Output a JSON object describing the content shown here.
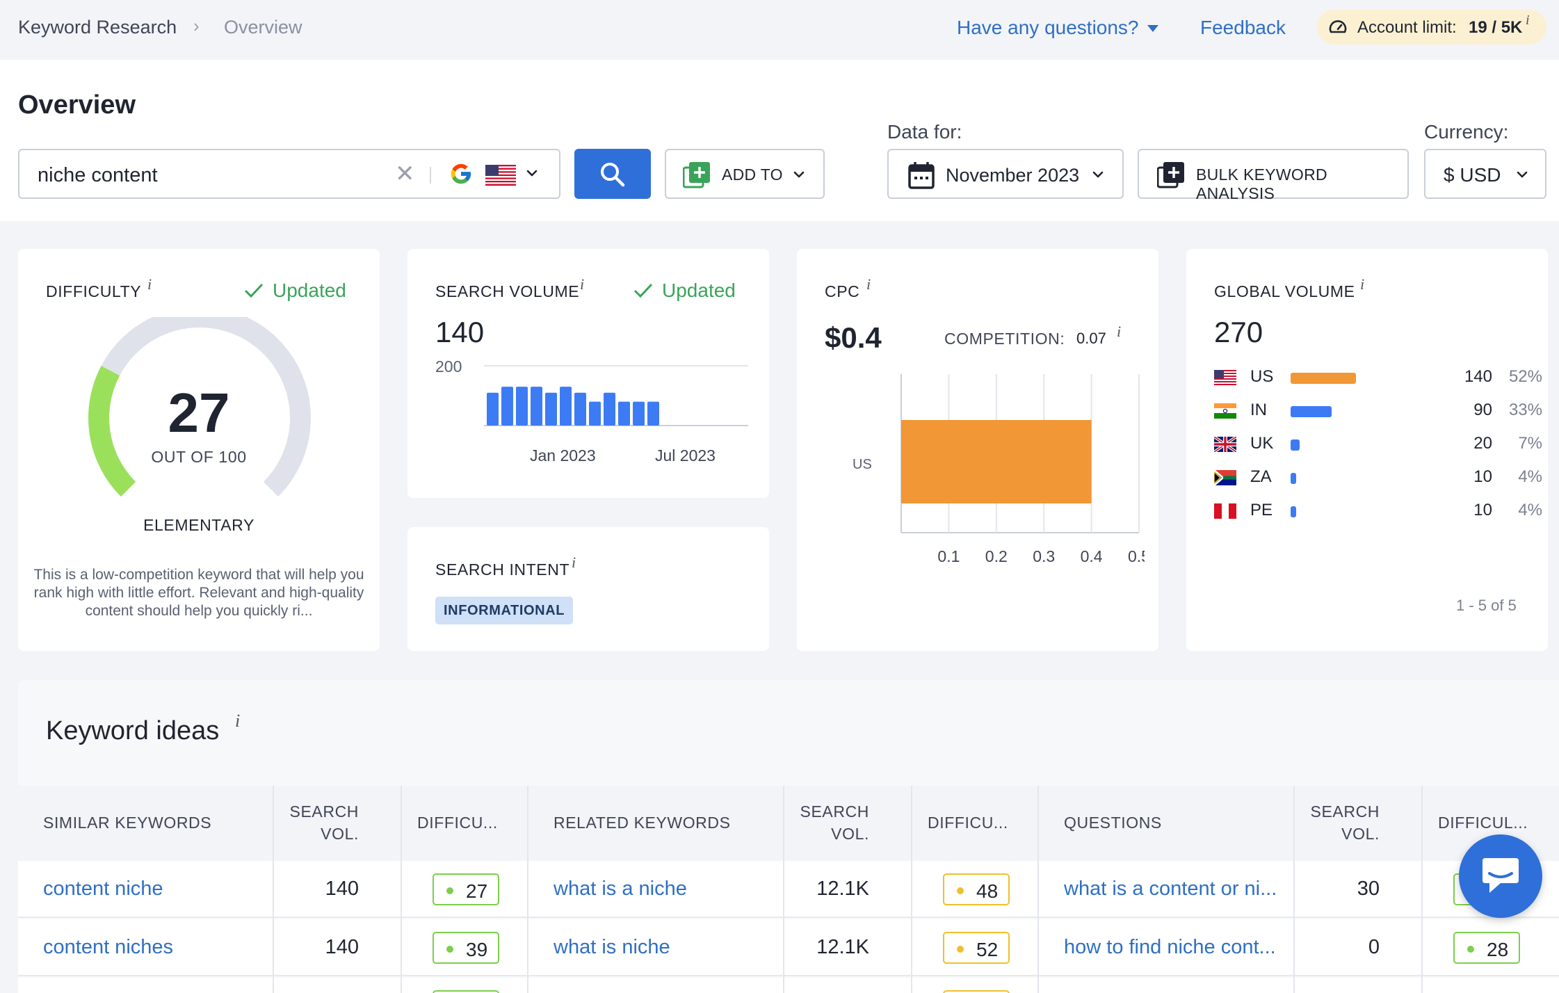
{
  "breadcrumb": {
    "root": "Keyword Research",
    "current": "Overview",
    "separator": "›"
  },
  "topbar": {
    "questions_label": "Have any questions?",
    "feedback_label": "Feedback",
    "account_limit_label": "Account limit:",
    "account_limit_value": "19 / 5K",
    "info": "i"
  },
  "header": {
    "title": "Overview",
    "search_value": "niche content",
    "clear_glyph": "✕",
    "add_to_label": "ADD TO",
    "data_for_label": "Data for:",
    "date_value": "November 2023",
    "bulk_label": "BULK KEYWORD ANALYSIS",
    "currency_label": "Currency:",
    "currency_value": "$ USD",
    "icons": [
      "google-icon",
      "us-flag-icon",
      "search-icon",
      "add-icon",
      "calendar-icon",
      "bulk-add-icon"
    ]
  },
  "difficulty": {
    "title": "DIFFICULTY",
    "info": "i",
    "updated": "Updated",
    "value": "27",
    "out_of": "OUT OF 100",
    "level": "ELEMENTARY",
    "gauge_fraction": 0.27,
    "description": "This is a low-competition keyword that will help you rank high with little effort. Relevant and high-quality content should help you quickly ri...",
    "colors": {
      "fill": "#9be05b",
      "track": "#dfe2ea"
    }
  },
  "search_volume": {
    "title": "SEARCH VOLUME",
    "info": "i",
    "updated": "Updated",
    "value": "140",
    "chart_data": {
      "type": "bar",
      "ytick": "200",
      "ylim": [
        0,
        200
      ],
      "values": [
        110,
        130,
        130,
        130,
        110,
        130,
        110,
        80,
        110,
        80,
        80,
        80
      ],
      "xtick_labels": [
        "Jan 2023",
        "Jul 2023"
      ],
      "color": "#3d7bf5"
    }
  },
  "search_intent": {
    "title": "SEARCH INTENT",
    "info": "i",
    "badge": "INFORMATIONAL"
  },
  "cpc": {
    "title": "CPC",
    "info": "i",
    "value": "$0.4",
    "competition_label": "COMPETITION:",
    "competition_value": "0.07",
    "chart_data": {
      "type": "bar",
      "orientation": "horizontal",
      "categories": [
        "US"
      ],
      "values": [
        0.4
      ],
      "xlim": [
        0,
        0.5
      ],
      "xticks": [
        "0.1",
        "0.2",
        "0.3",
        "0.4",
        "0.5"
      ],
      "color": "#f29736"
    }
  },
  "global_volume": {
    "title": "GLOBAL VOLUME",
    "info": "i",
    "value": "270",
    "rows": [
      {
        "code": "US",
        "volume": "140",
        "pct": "52%",
        "share": 0.52,
        "color": "#f29736"
      },
      {
        "code": "IN",
        "volume": "90",
        "pct": "33%",
        "share": 0.33,
        "color": "#3d7bf5"
      },
      {
        "code": "UK",
        "volume": "20",
        "pct": "7%",
        "share": 0.07,
        "color": "#3d7bf5"
      },
      {
        "code": "ZA",
        "volume": "10",
        "pct": "4%",
        "share": 0.04,
        "color": "#3d7bf5"
      },
      {
        "code": "PE",
        "volume": "10",
        "pct": "4%",
        "share": 0.04,
        "color": "#3d7bf5"
      }
    ],
    "pagination": "1 - 5 of 5"
  },
  "keyword_ideas": {
    "title": "Keyword ideas",
    "info": "i",
    "headers": {
      "similar": "SIMILAR KEYWORDS",
      "vol1_a": "SEARCH",
      "vol1_b": "VOL.",
      "diff1": "DIFFICU...",
      "related": "RELATED KEYWORDS",
      "vol2_a": "SEARCH",
      "vol2_b": "VOL.",
      "diff2": "DIFFICU...",
      "questions": "QUESTIONS",
      "vol3_a": "SEARCH",
      "vol3_b": "VOL.",
      "diff3": "DIFFICUL..."
    },
    "rows": [
      {
        "similar": "content niche",
        "similar_vol": "140",
        "similar_diff": "27",
        "related": "what is a niche",
        "related_vol": "12.1K",
        "related_diff": "48",
        "question": "what is a content or ni...",
        "question_vol": "30",
        "question_diff": ""
      },
      {
        "similar": "content niches",
        "similar_vol": "140",
        "similar_diff": "39",
        "related": "what is niche",
        "related_vol": "12.1K",
        "related_diff": "52",
        "question": "how to find niche cont...",
        "question_vol": "0",
        "question_diff": "28"
      }
    ],
    "badge_colors": {
      "green": "#7ccf4a",
      "yellow": "#f0c02b"
    }
  }
}
